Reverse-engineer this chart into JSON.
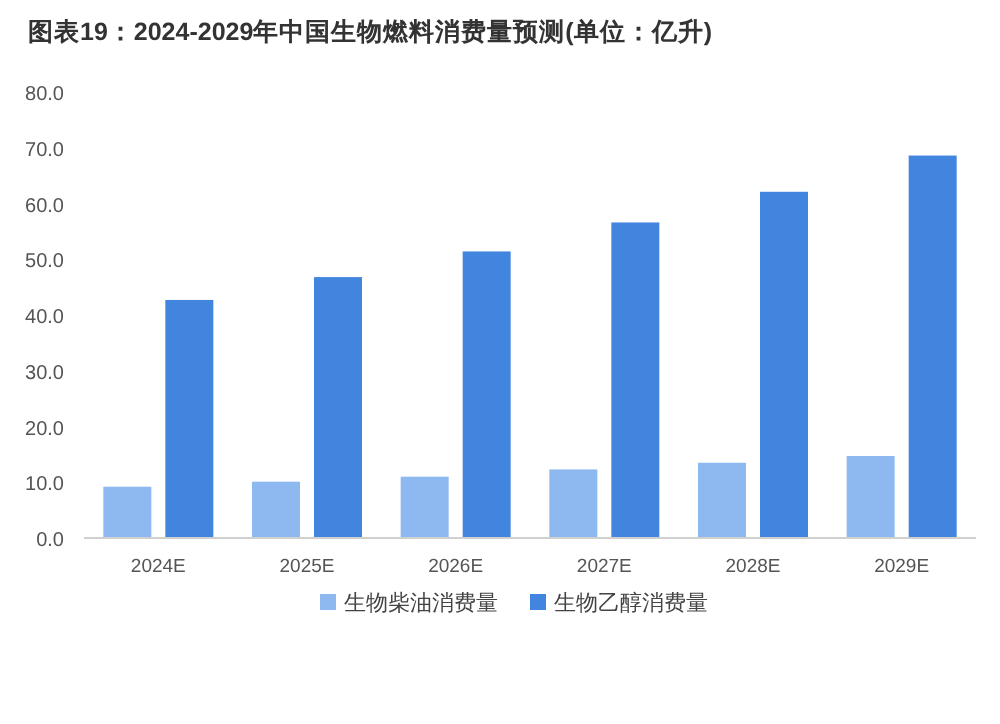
{
  "chart_data": {
    "type": "bar",
    "title": "图表19：2024-2029年中国生物燃料消费量预测(单位：亿升)",
    "categories": [
      "2024E",
      "2025E",
      "2026E",
      "2027E",
      "2028E",
      "2029E"
    ],
    "series": [
      {
        "name": "生物柴油消费量",
        "color": "#8db8f0",
        "values": [
          9.2,
          10.1,
          11.0,
          12.3,
          13.5,
          14.7
        ]
      },
      {
        "name": "生物乙醇消费量",
        "color": "#4285de",
        "values": [
          42.7,
          46.8,
          51.4,
          56.6,
          62.1,
          68.6
        ]
      }
    ],
    "ylim": [
      0,
      80
    ],
    "yticks": [
      {
        "value": 0,
        "label": "0.0"
      },
      {
        "value": 10,
        "label": "10.0"
      },
      {
        "value": 20,
        "label": "20.0"
      },
      {
        "value": 30,
        "label": "30.0"
      },
      {
        "value": 40,
        "label": "40.0"
      },
      {
        "value": 50,
        "label": "50.0"
      },
      {
        "value": 60,
        "label": "60.0"
      },
      {
        "value": 70,
        "label": "70.0"
      },
      {
        "value": 80,
        "label": "80.0"
      }
    ],
    "legend": "bottom"
  }
}
